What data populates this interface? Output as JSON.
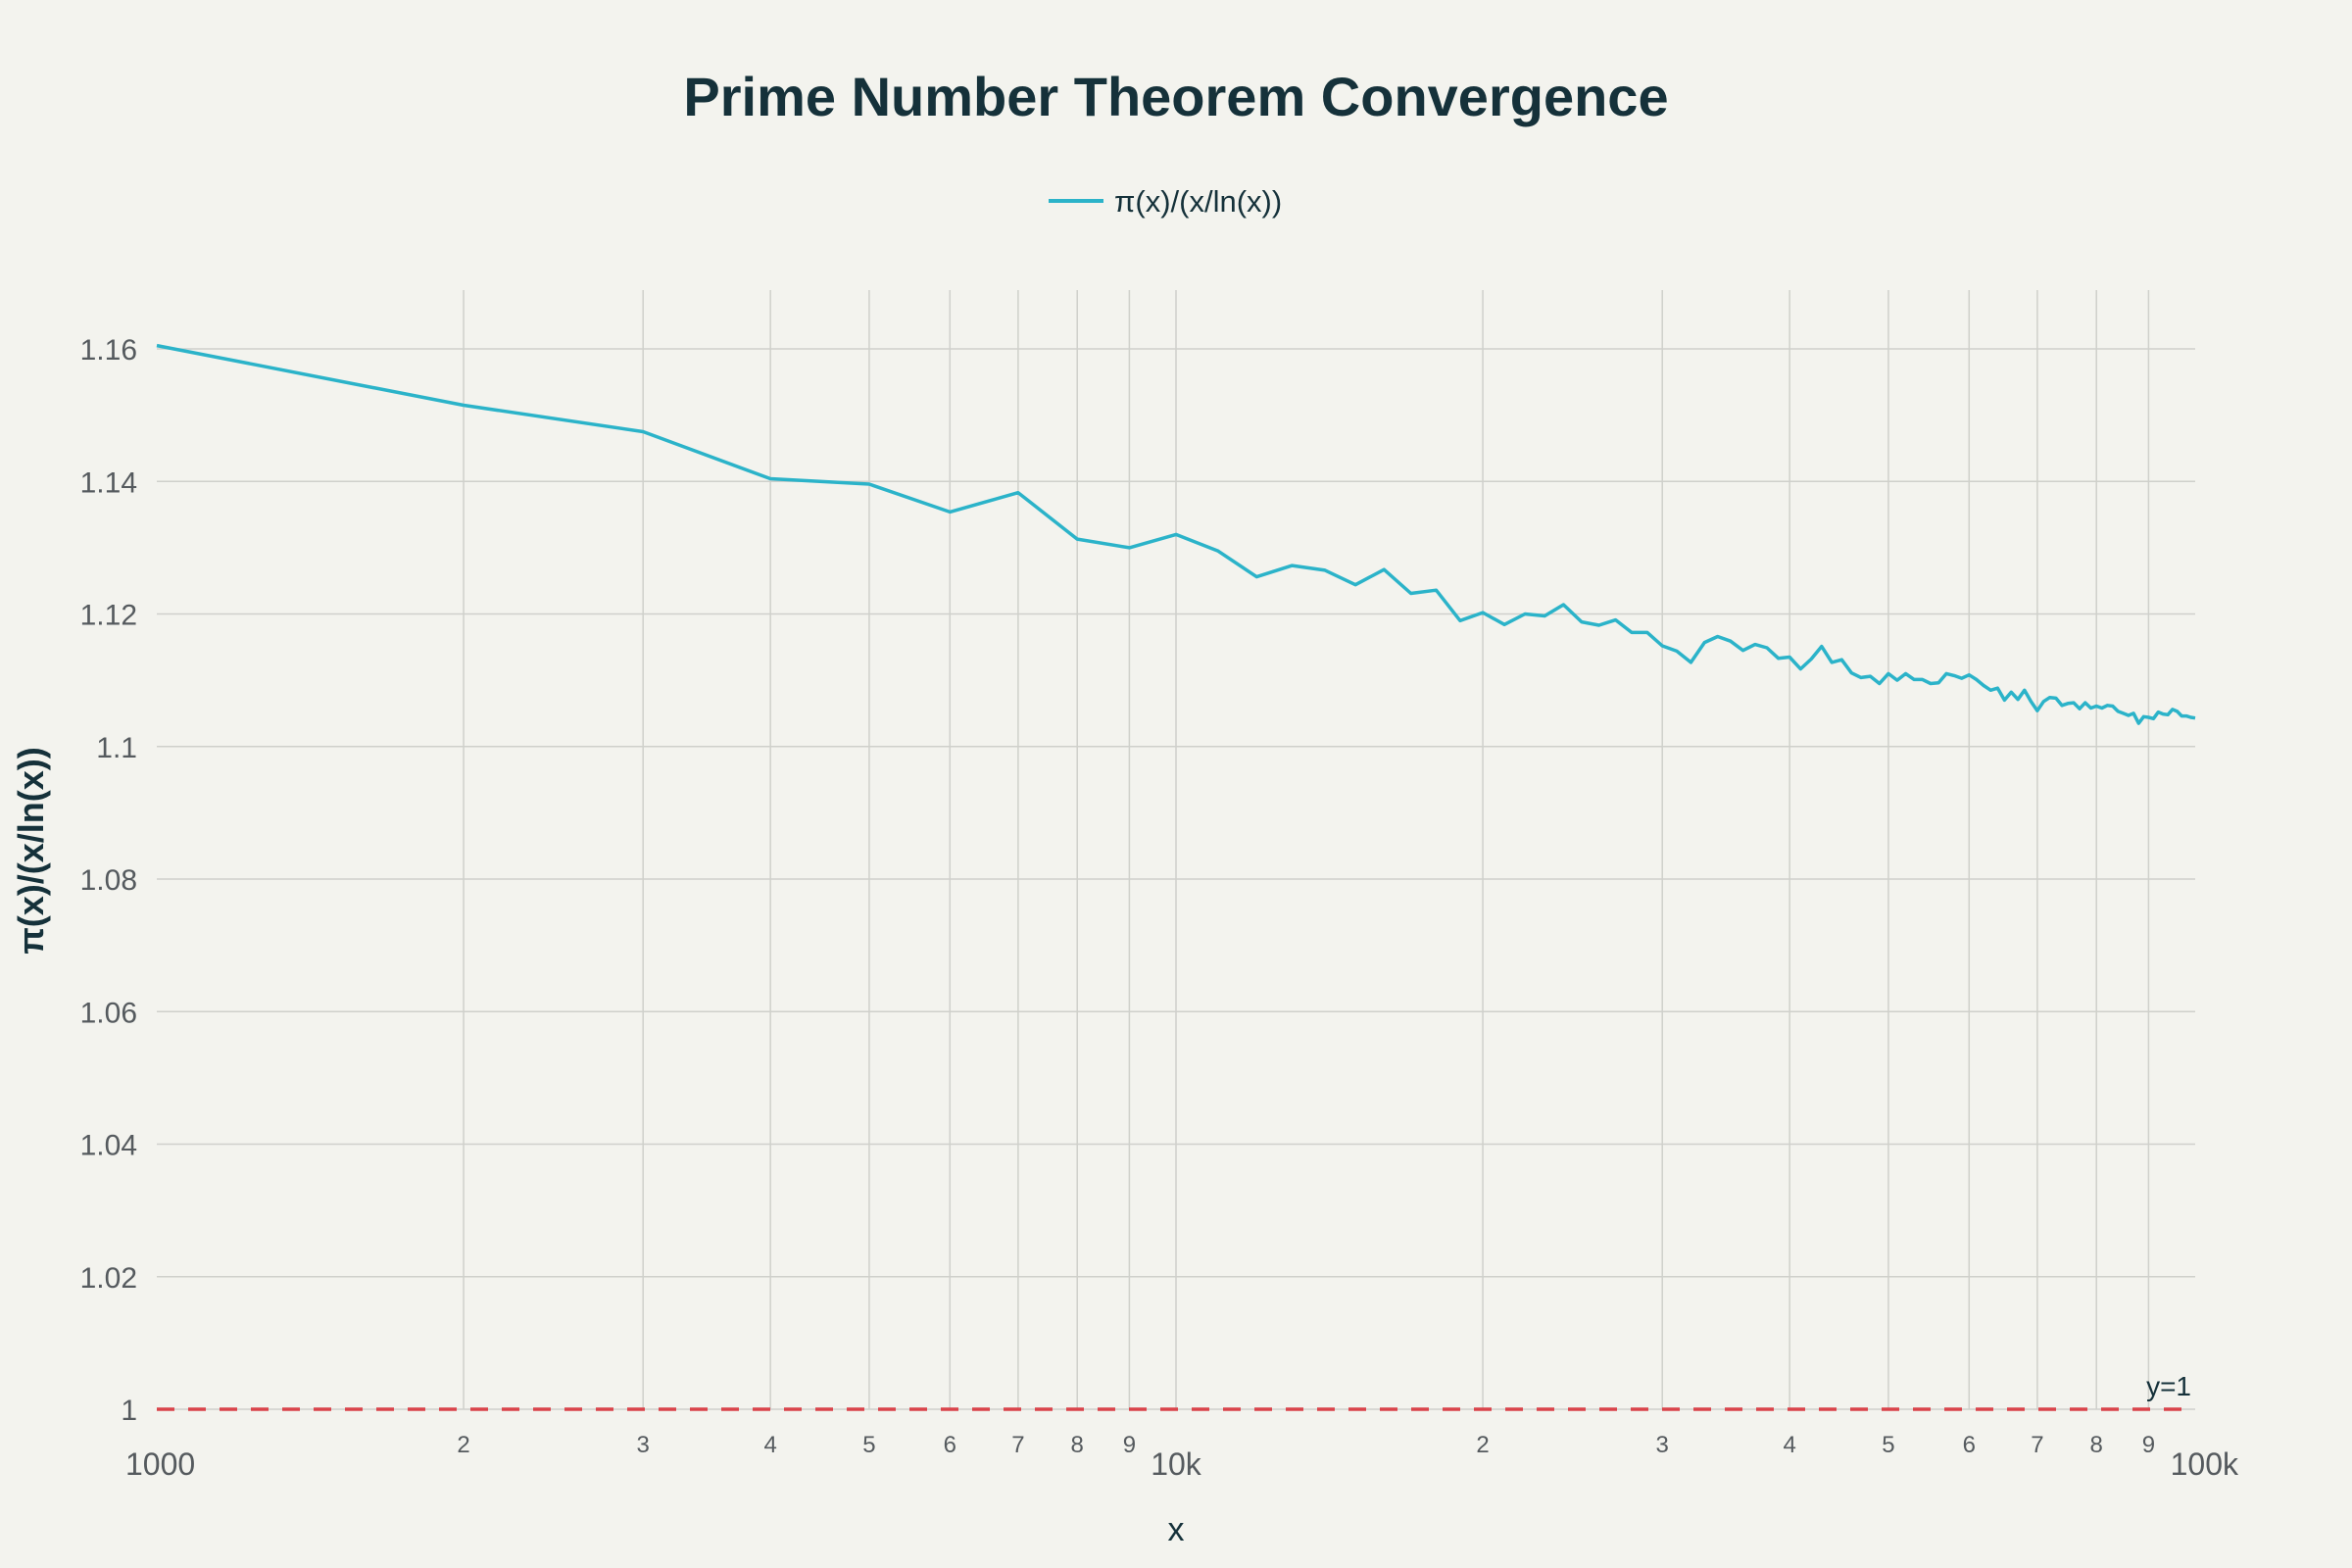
{
  "chart_data": {
    "type": "line",
    "title": "Prime Number Theorem Convergence",
    "xlabel": "x",
    "ylabel": "π(x)/(x/ln(x))",
    "x_scale": "log",
    "xlim": [
      1000,
      100000
    ],
    "ylim": [
      1,
      1.16
    ],
    "y_ticks": [
      "1",
      "1.02",
      "1.04",
      "1.06",
      "1.08",
      "1.1",
      "1.12",
      "1.14",
      "1.16"
    ],
    "y_tick_values": [
      1,
      1.02,
      1.04,
      1.06,
      1.08,
      1.1,
      1.12,
      1.14,
      1.16
    ],
    "x_major_ticks": [
      {
        "value": 1000,
        "label": "1000"
      },
      {
        "value": 10000,
        "label": "10k"
      },
      {
        "value": 100000,
        "label": "100k"
      }
    ],
    "x_minor_ticks": [
      {
        "value": 2000,
        "label": "2"
      },
      {
        "value": 3000,
        "label": "3"
      },
      {
        "value": 4000,
        "label": "4"
      },
      {
        "value": 5000,
        "label": "5"
      },
      {
        "value": 6000,
        "label": "6"
      },
      {
        "value": 7000,
        "label": "7"
      },
      {
        "value": 8000,
        "label": "8"
      },
      {
        "value": 9000,
        "label": "9"
      },
      {
        "value": 20000,
        "label": "2"
      },
      {
        "value": 30000,
        "label": "3"
      },
      {
        "value": 40000,
        "label": "4"
      },
      {
        "value": 50000,
        "label": "5"
      },
      {
        "value": 60000,
        "label": "6"
      },
      {
        "value": 70000,
        "label": "7"
      },
      {
        "value": 80000,
        "label": "8"
      },
      {
        "value": 90000,
        "label": "9"
      }
    ],
    "grid": true,
    "legend": {
      "placement": "top-center",
      "entries": [
        "π(x)/(x/ln(x))"
      ]
    },
    "colors": {
      "series": "#2bb3c9",
      "reference": "#d9434a",
      "grid": "#cfd0cb",
      "background": "#f3f3ee"
    },
    "series": [
      {
        "name": "π(x)/(x/ln(x))",
        "x": [
          1000,
          2000,
          3000,
          4000,
          5000,
          6000,
          7000,
          8000,
          9000,
          10000,
          11000,
          12000,
          13000,
          14000,
          15000,
          16000,
          17000,
          18000,
          19000,
          20000,
          21000,
          22000,
          23000,
          24000,
          25000,
          26000,
          27000,
          28000,
          29000,
          30000,
          31000,
          32000,
          33000,
          34000,
          35000,
          36000,
          37000,
          38000,
          39000,
          40000,
          41000,
          42000,
          43000,
          44000,
          45000,
          46000,
          47000,
          48000,
          49000,
          50000,
          51000,
          52000,
          53000,
          54000,
          55000,
          56000,
          57000,
          58000,
          59000,
          60000,
          61000,
          62000,
          63000,
          64000,
          65000,
          66000,
          67000,
          68000,
          69000,
          70000,
          71000,
          72000,
          73000,
          74000,
          75000,
          76000,
          77000,
          78000,
          79000,
          80000,
          81000,
          82000,
          83000,
          84000,
          85000,
          86000,
          87000,
          88000,
          89000,
          90000,
          91000,
          92000,
          93000,
          94000,
          95000,
          96000,
          97000,
          98000,
          99000,
          100000
        ],
        "y": [
          1.1605,
          1.1515,
          1.1475,
          1.1404,
          1.1396,
          1.1354,
          1.1383,
          1.1313,
          1.13,
          1.132,
          1.1295,
          1.1256,
          1.1273,
          1.1266,
          1.1244,
          1.1267,
          1.1231,
          1.1236,
          1.119,
          1.1202,
          1.1184,
          1.12,
          1.1197,
          1.1214,
          1.1188,
          1.1183,
          1.1191,
          1.1172,
          1.1172,
          1.1152,
          1.1144,
          1.1127,
          1.1157,
          1.1166,
          1.1159,
          1.1145,
          1.1154,
          1.1149,
          1.1133,
          1.1135,
          1.1117,
          1.1132,
          1.1151,
          1.1127,
          1.1131,
          1.1111,
          1.1104,
          1.1106,
          1.1095,
          1.111,
          1.11,
          1.111,
          1.1101,
          1.1101,
          1.1095,
          1.1096,
          1.111,
          1.1107,
          1.1103,
          1.1108,
          1.1101,
          1.1092,
          1.1085,
          1.1088,
          1.107,
          1.1082,
          1.1071,
          1.1085,
          1.1068,
          1.1054,
          1.1068,
          1.1074,
          1.1073,
          1.1062,
          1.1065,
          1.1066,
          1.1057,
          1.1066,
          1.1058,
          1.1061,
          1.1058,
          1.1062,
          1.1061,
          1.1053,
          1.105,
          1.1047,
          1.105,
          1.1035,
          1.1045,
          1.1044,
          1.1042,
          1.1052,
          1.1049,
          1.1048,
          1.1056,
          1.1053,
          1.1046,
          1.1046,
          1.1044,
          1.1043
        ]
      }
    ],
    "reference_line": {
      "y": 1,
      "style": "dashed",
      "label": "y=1"
    }
  }
}
